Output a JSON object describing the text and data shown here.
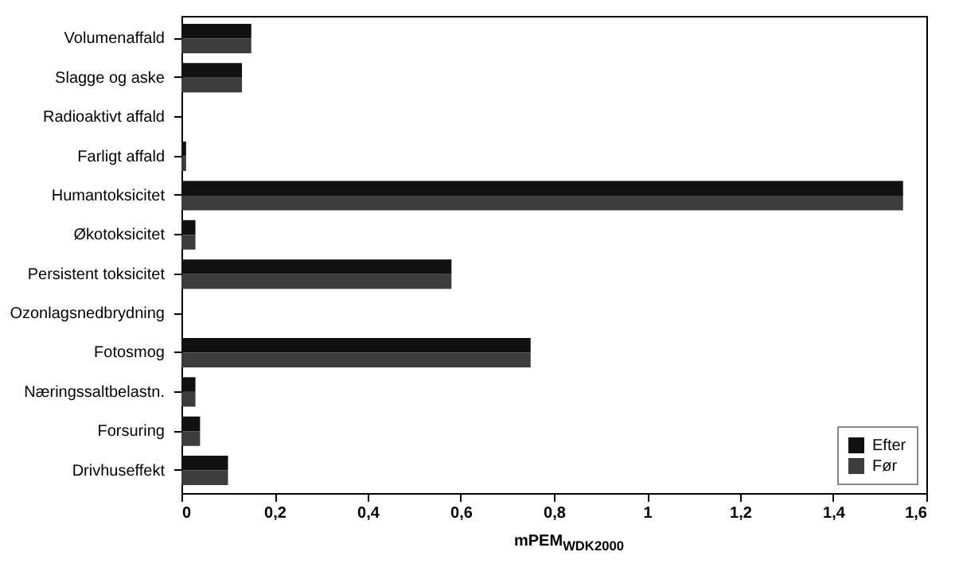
{
  "chart_data": {
    "type": "bar",
    "orientation": "horizontal",
    "xlabel": "mPEM$_{WDK2000}$",
    "categories": [
      "Volumenaffald",
      "Slagge og aske",
      "Radioaktivt affald",
      "Farligt affald",
      "Humantoksicitet",
      "Økotoksicitet",
      "Persistent toksicitet",
      "Ozonlagsnedbrydning",
      "Fotosmog",
      "Næringssaltbelastn.",
      "Forsuring",
      "Drivhuseffekt"
    ],
    "series": [
      {
        "name": "Efter",
        "color": "#111111",
        "values": [
          0.15,
          0.13,
          0,
          0.01,
          1.55,
          0.03,
          0.58,
          0,
          0.75,
          0.03,
          0.04,
          0.1
        ]
      },
      {
        "name": "Før",
        "color": "#3c3c3c",
        "values": [
          0.15,
          0.13,
          0,
          0.01,
          1.55,
          0.03,
          0.58,
          0,
          0.75,
          0.03,
          0.04,
          0.1
        ]
      }
    ],
    "xlim": [
      0,
      1.6
    ],
    "xticks": [
      0,
      {
        "value": 0.2,
        "label": "0,2"
      },
      {
        "value": 0.4,
        "label": "0,4"
      },
      {
        "value": 0.6,
        "label": "0,6"
      },
      {
        "value": 0.8,
        "label": "0,8"
      },
      1,
      {
        "value": 1.2,
        "label": "1,2"
      },
      {
        "value": 1.4,
        "label": "1,4"
      },
      {
        "value": 1.6,
        "label": "1,6"
      }
    ],
    "grid": false,
    "legend": "bottom right"
  }
}
